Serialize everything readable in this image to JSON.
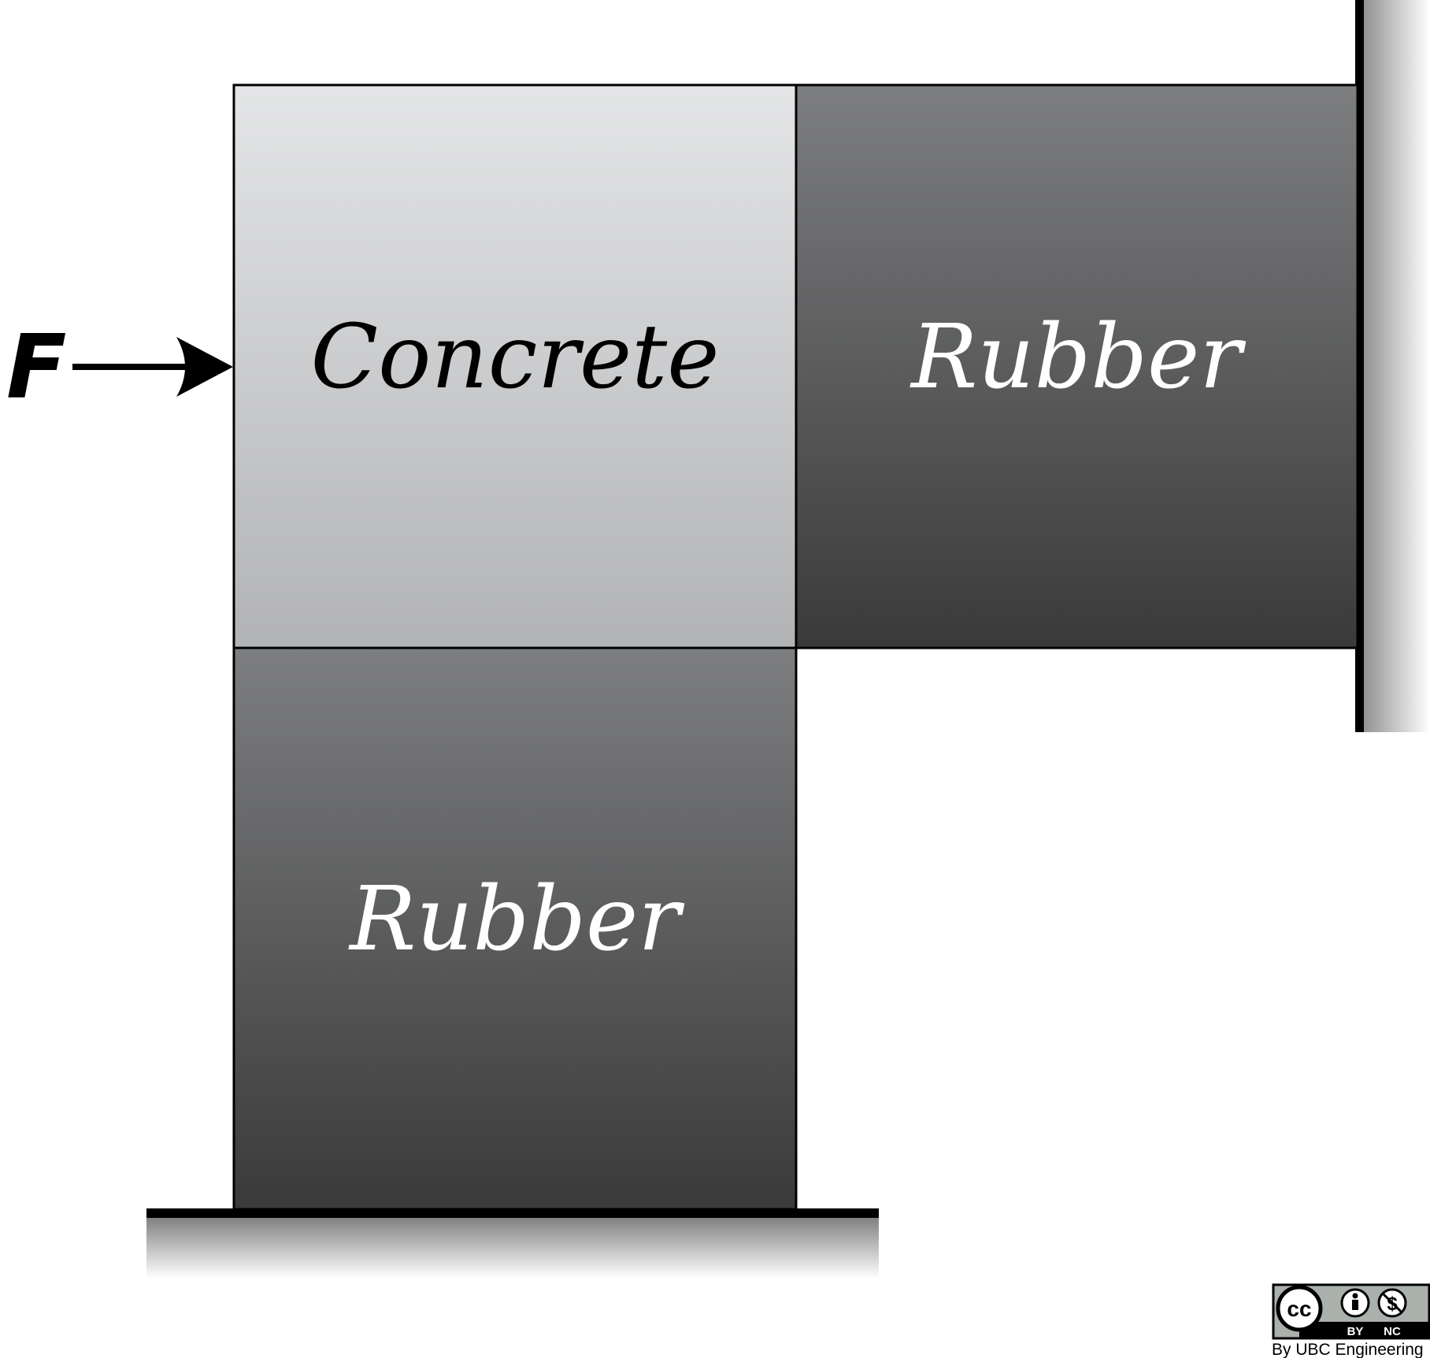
{
  "force": {
    "label": "F"
  },
  "blocks": {
    "concrete": {
      "label": "Concrete",
      "color_top": "#e4e5e6",
      "color_bottom": "#b2b3b5",
      "text_color": "#000000"
    },
    "rubber_right": {
      "label": "Rubber",
      "color_top": "#7d7e80",
      "color_bottom": "#3a3a3a",
      "text_color": "#ffffff"
    },
    "rubber_bottom": {
      "label": "Rubber",
      "color_top": "#7d7e80",
      "color_bottom": "#3a3a3a",
      "text_color": "#ffffff"
    }
  },
  "supports": {
    "wall": "fixed wall (right)",
    "ground": "fixed ground (bottom)"
  },
  "license": {
    "cc": "cc",
    "by": "BY",
    "nc": "NC",
    "credit": "By UBC Engineering"
  }
}
